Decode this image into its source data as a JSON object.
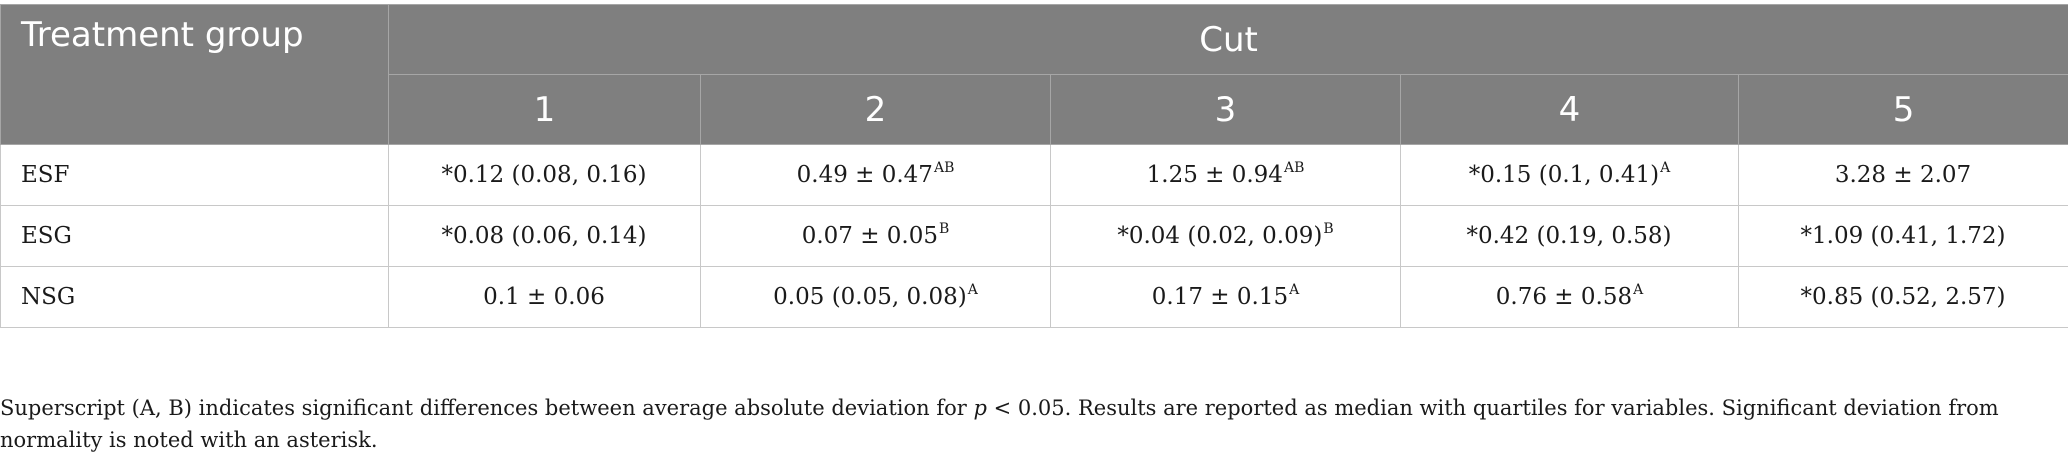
{
  "header": {
    "group_label": "Treatment group",
    "cut_label": "Cut",
    "cuts": [
      "1",
      "2",
      "3",
      "4",
      "5"
    ]
  },
  "rows": [
    {
      "label": "ESF",
      "cells": [
        {
          "value": "*0.12 (0.08, 0.16)",
          "sup": ""
        },
        {
          "value": "0.49 ± 0.47",
          "sup": "AB"
        },
        {
          "value": "1.25 ± 0.94",
          "sup": "AB"
        },
        {
          "value": "*0.15 (0.1, 0.41)",
          "sup": "A"
        },
        {
          "value": "3.28 ± 2.07",
          "sup": ""
        }
      ]
    },
    {
      "label": "ESG",
      "cells": [
        {
          "value": "*0.08 (0.06, 0.14)",
          "sup": ""
        },
        {
          "value": "0.07 ± 0.05",
          "sup": "B"
        },
        {
          "value": "*0.04 (0.02, 0.09)",
          "sup": "B"
        },
        {
          "value": "*0.42 (0.19, 0.58)",
          "sup": ""
        },
        {
          "value": "*1.09 (0.41, 1.72)",
          "sup": ""
        }
      ]
    },
    {
      "label": "NSG",
      "cells": [
        {
          "value": "0.1 ± 0.06",
          "sup": ""
        },
        {
          "value": "0.05 (0.05, 0.08)",
          "sup": "A"
        },
        {
          "value": "0.17 ± 0.15",
          "sup": "A"
        },
        {
          "value": "0.76 ± 0.58",
          "sup": "A"
        },
        {
          "value": "*0.85 (0.52, 2.57)",
          "sup": ""
        }
      ]
    }
  ],
  "footnote": {
    "part1": "Superscript (A, B) indicates significant differences between average absolute deviation for ",
    "p_symbol": "p",
    "part2": " < 0.05. Results are reported as median with quartiles for variables. Significant deviation from normality is noted with an asterisk."
  }
}
